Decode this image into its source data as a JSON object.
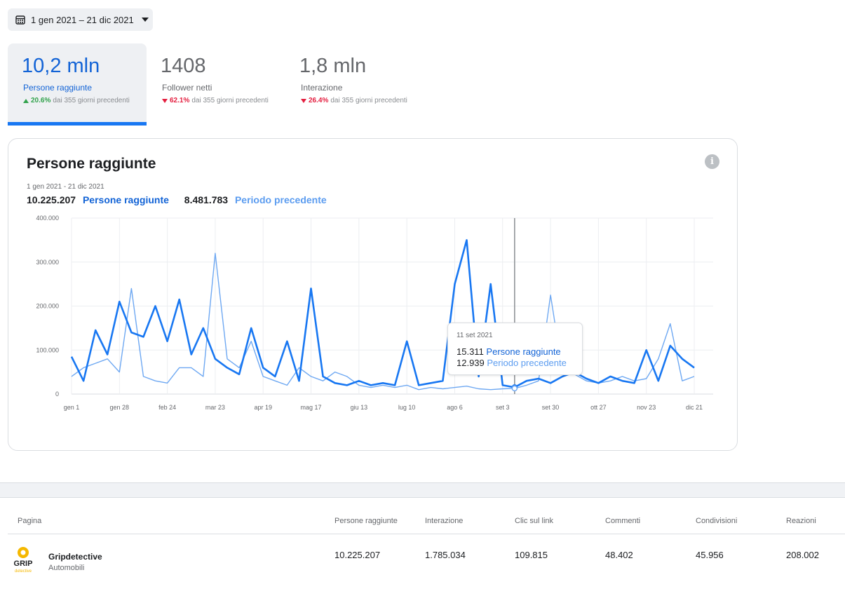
{
  "date_range": {
    "label": "1 gen 2021 – 21 dic 2021"
  },
  "metrics": [
    {
      "value": "10,2 mln",
      "label": "Persone raggiunte",
      "change": "20.6%",
      "direction": "up",
      "compare": "dai 355 giorni precedenti"
    },
    {
      "value": "1408",
      "label": "Follower netti",
      "change": "62.1%",
      "direction": "down",
      "compare": "dai 355 giorni precedenti"
    },
    {
      "value": "1,8 mln",
      "label": "Interazione",
      "change": "26.4%",
      "direction": "down",
      "compare": "dai 355 giorni precedenti"
    }
  ],
  "chart_card": {
    "title": "Persone raggiunte",
    "range": "1 gen 2021 - 21 dic 2021",
    "current_total": "10.225.207",
    "current_label": "Persone raggiunte",
    "previous_total": "8.481.783",
    "previous_label": "Periodo precedente"
  },
  "tooltip": {
    "date": "11 set 2021",
    "current_value": "15.311",
    "current_label": "Persone raggiunte",
    "previous_value": "12.939",
    "previous_label": "Periodo precedente"
  },
  "chart_data": {
    "type": "line",
    "x": [
      "gen 1",
      "gen 7",
      "gen 14",
      "gen 21",
      "gen 28",
      "feb 3",
      "feb 10",
      "feb 17",
      "feb 24",
      "mar 2",
      "mar 9",
      "mar 16",
      "mar 23",
      "mar 29",
      "apr 5",
      "apr 12",
      "apr 19",
      "apr 25",
      "mag 2",
      "mag 9",
      "mag 17",
      "mag 23",
      "mag 30",
      "giu 6",
      "giu 13",
      "giu 19",
      "giu 26",
      "lug 3",
      "lug 10",
      "lug 16",
      "lug 23",
      "lug 30",
      "ago 6",
      "ago 12",
      "ago 19",
      "ago 26",
      "set 3",
      "set 11",
      "set 17",
      "set 24",
      "set 30",
      "ott 7",
      "ott 14",
      "ott 21",
      "ott 27",
      "nov 3",
      "nov 10",
      "nov 17",
      "nov 23",
      "nov 30",
      "dic 7",
      "dic 14",
      "dic 21"
    ],
    "series": [
      {
        "name": "Persone raggiunte",
        "color": "#1877f2",
        "values": [
          85000,
          30000,
          145000,
          90000,
          210000,
          140000,
          130000,
          200000,
          120000,
          215000,
          90000,
          150000,
          80000,
          60000,
          45000,
          150000,
          60000,
          40000,
          120000,
          30000,
          240000,
          40000,
          25000,
          20000,
          30000,
          20000,
          25000,
          20000,
          120000,
          20000,
          25000,
          30000,
          250000,
          350000,
          40000,
          250000,
          20000,
          15311,
          30000,
          35000,
          25000,
          40000,
          50000,
          35000,
          25000,
          40000,
          30000,
          25000,
          100000,
          30000,
          110000,
          80000,
          60000
        ]
      },
      {
        "name": "Periodo precedente",
        "color": "#6ea8f2",
        "values": [
          40000,
          60000,
          70000,
          80000,
          50000,
          240000,
          40000,
          30000,
          25000,
          60000,
          60000,
          40000,
          320000,
          80000,
          60000,
          120000,
          40000,
          30000,
          20000,
          60000,
          40000,
          30000,
          50000,
          40000,
          20000,
          15000,
          20000,
          15000,
          20000,
          10000,
          15000,
          12000,
          15000,
          18000,
          12000,
          10000,
          12000,
          12939,
          20000,
          30000,
          225000,
          50000,
          45000,
          30000,
          25000,
          30000,
          40000,
          30000,
          35000,
          80000,
          160000,
          30000,
          40000
        ]
      }
    ],
    "x_tick_labels": [
      "gen 1",
      "gen 28",
      "feb 24",
      "mar 23",
      "apr 19",
      "mag 17",
      "giu 13",
      "lug 10",
      "ago 6",
      "set 3",
      "set 30",
      "ott 27",
      "nov 23",
      "dic 21"
    ],
    "y_tick_labels": [
      "0",
      "100.000",
      "200.000",
      "300.000",
      "400.000"
    ],
    "ylim": [
      0,
      400000
    ],
    "grid": true,
    "highlight": {
      "x": "set 11"
    }
  },
  "table": {
    "headers": [
      "Pagina",
      "Persone raggiunte",
      "Interazione",
      "Clic sul link",
      "Commenti",
      "Condivisioni",
      "Reazioni"
    ],
    "rows": [
      {
        "page_name": "Gripdetective",
        "category": "Automobili",
        "logo_text": "GRIP",
        "logo_sub": "detective",
        "values": [
          "10.225.207",
          "1.785.034",
          "109.815",
          "48.402",
          "45.956",
          "208.002"
        ]
      }
    ]
  }
}
